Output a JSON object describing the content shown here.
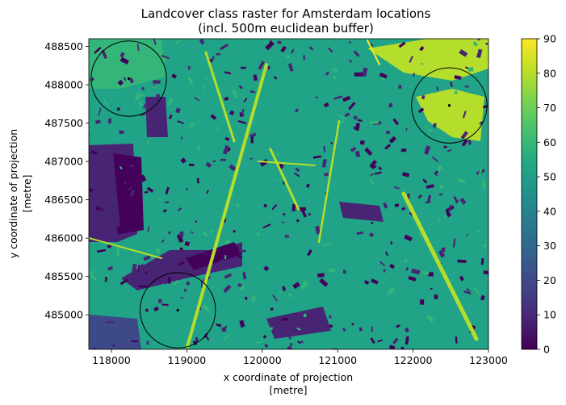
{
  "chart_data": {
    "type": "heatmap",
    "title": "Landcover class raster for Amsterdam locations",
    "subtitle": "(incl. 500m euclidean buffer)",
    "xlabel": "x coordinate of projection",
    "xunit": "[metre]",
    "ylabel": "y coordinate of projection",
    "yunit": "[metre]",
    "xlim": [
      117700,
      123000
    ],
    "ylim": [
      484550,
      488600
    ],
    "x_ticks": [
      118000,
      119000,
      120000,
      121000,
      122000,
      123000
    ],
    "y_ticks": [
      485000,
      485500,
      486000,
      486500,
      487000,
      487500,
      488000,
      488500
    ],
    "colorbar": {
      "colormap": "viridis",
      "min": 0,
      "max": 90,
      "ticks": [
        0,
        10,
        20,
        30,
        40,
        50,
        60,
        70,
        80,
        90
      ]
    },
    "raster_dominant_value": 50,
    "locations": [
      {
        "x": 118230,
        "y": 488080,
        "buffer_radius_m": 500
      },
      {
        "x": 122480,
        "y": 487730,
        "buffer_radius_m": 500
      },
      {
        "x": 118880,
        "y": 485060,
        "buffer_radius_m": 500
      }
    ],
    "colors": {
      "v5": "#44015a",
      "v10": "#482475",
      "v20": "#3e4989",
      "v50": "#20a386",
      "v60": "#34b679",
      "v70": "#6ccd5a",
      "v80": "#b5dd2b",
      "v90": "#fde725"
    }
  }
}
